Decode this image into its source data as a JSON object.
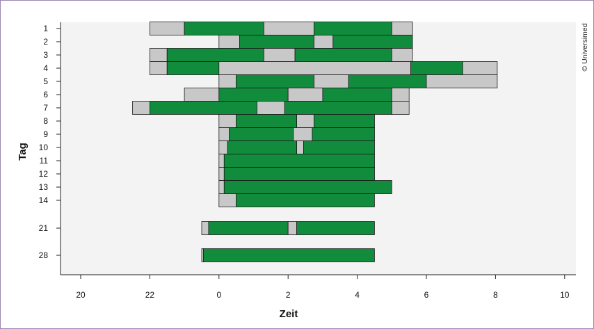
{
  "chart_data": {
    "type": "bar",
    "orientation": "horizontal",
    "xlabel": "Zeit",
    "ylabel": "Tag",
    "x_tick_labels": [
      "20",
      "22",
      "0",
      "2",
      "4",
      "6",
      "8",
      "10"
    ],
    "x_tick_values": [
      20,
      22,
      24,
      26,
      28,
      30,
      32,
      34
    ],
    "xlim": [
      19.4,
      34.3
    ],
    "grid": false,
    "legend": "none",
    "colors": {
      "wake": "#c8c8c8",
      "sleep": "#118c3c",
      "background": "#f3f3f3"
    },
    "rows": [
      {
        "tag": "1",
        "segments": [
          [
            22.0,
            23.0,
            "wake"
          ],
          [
            23.0,
            25.3,
            "sleep"
          ],
          [
            25.3,
            26.75,
            "wake"
          ],
          [
            26.75,
            29.0,
            "sleep"
          ],
          [
            29.0,
            29.6,
            "wake"
          ]
        ]
      },
      {
        "tag": "2",
        "segments": [
          [
            24.0,
            24.6,
            "wake"
          ],
          [
            24.6,
            26.75,
            "sleep"
          ],
          [
            26.75,
            27.3,
            "wake"
          ],
          [
            27.3,
            29.6,
            "sleep"
          ]
        ]
      },
      {
        "tag": "3",
        "segments": [
          [
            22.0,
            22.5,
            "wake"
          ],
          [
            22.5,
            25.3,
            "sleep"
          ],
          [
            25.3,
            26.2,
            "wake"
          ],
          [
            26.2,
            29.0,
            "sleep"
          ],
          [
            29.0,
            29.6,
            "wake"
          ]
        ]
      },
      {
        "tag": "4",
        "segments": [
          [
            22.0,
            22.5,
            "wake"
          ],
          [
            22.5,
            24.0,
            "sleep"
          ],
          [
            24.0,
            29.55,
            "wake"
          ],
          [
            29.55,
            31.05,
            "sleep"
          ],
          [
            31.05,
            32.05,
            "wake"
          ]
        ]
      },
      {
        "tag": "5",
        "segments": [
          [
            24.0,
            24.5,
            "wake"
          ],
          [
            24.5,
            26.75,
            "sleep"
          ],
          [
            26.75,
            27.75,
            "wake"
          ],
          [
            27.75,
            30.0,
            "sleep"
          ],
          [
            30.0,
            32.05,
            "wake"
          ]
        ]
      },
      {
        "tag": "6",
        "segments": [
          [
            23.0,
            24.0,
            "wake"
          ],
          [
            24.0,
            26.0,
            "sleep"
          ],
          [
            26.0,
            27.0,
            "wake"
          ],
          [
            27.0,
            29.0,
            "sleep"
          ],
          [
            29.0,
            29.5,
            "wake"
          ]
        ]
      },
      {
        "tag": "7",
        "segments": [
          [
            21.5,
            22.0,
            "wake"
          ],
          [
            22.0,
            25.1,
            "sleep"
          ],
          [
            25.1,
            25.9,
            "wake"
          ],
          [
            25.9,
            29.0,
            "sleep"
          ],
          [
            29.0,
            29.5,
            "wake"
          ]
        ]
      },
      {
        "tag": "8",
        "segments": [
          [
            24.0,
            24.5,
            "wake"
          ],
          [
            24.5,
            26.25,
            "sleep"
          ],
          [
            26.25,
            26.75,
            "wake"
          ],
          [
            26.75,
            28.5,
            "sleep"
          ]
        ]
      },
      {
        "tag": "9",
        "segments": [
          [
            24.0,
            24.3,
            "wake"
          ],
          [
            24.3,
            26.15,
            "sleep"
          ],
          [
            26.15,
            26.7,
            "wake"
          ],
          [
            26.7,
            28.5,
            "sleep"
          ]
        ]
      },
      {
        "tag": "10",
        "segments": [
          [
            24.0,
            24.25,
            "wake"
          ],
          [
            24.25,
            26.25,
            "sleep"
          ],
          [
            26.25,
            26.45,
            "wake"
          ],
          [
            26.45,
            28.5,
            "sleep"
          ]
        ]
      },
      {
        "tag": "11",
        "segments": [
          [
            24.0,
            24.15,
            "wake"
          ],
          [
            24.15,
            28.5,
            "sleep"
          ]
        ]
      },
      {
        "tag": "12",
        "segments": [
          [
            24.0,
            24.15,
            "wake"
          ],
          [
            24.15,
            28.5,
            "sleep"
          ]
        ]
      },
      {
        "tag": "13",
        "segments": [
          [
            24.0,
            24.15,
            "wake"
          ],
          [
            24.15,
            29.0,
            "sleep"
          ]
        ]
      },
      {
        "tag": "14",
        "segments": [
          [
            24.0,
            24.5,
            "wake"
          ],
          [
            24.5,
            28.5,
            "sleep"
          ]
        ]
      },
      {
        "tag": "21",
        "segments": [
          [
            23.5,
            23.7,
            "wake"
          ],
          [
            23.7,
            26.0,
            "sleep"
          ],
          [
            26.0,
            26.25,
            "wake"
          ],
          [
            26.25,
            28.5,
            "sleep"
          ]
        ]
      },
      {
        "tag": "28",
        "segments": [
          [
            23.5,
            23.55,
            "wake"
          ],
          [
            23.55,
            28.5,
            "sleep"
          ]
        ]
      }
    ]
  },
  "copyright": "© Universimed"
}
